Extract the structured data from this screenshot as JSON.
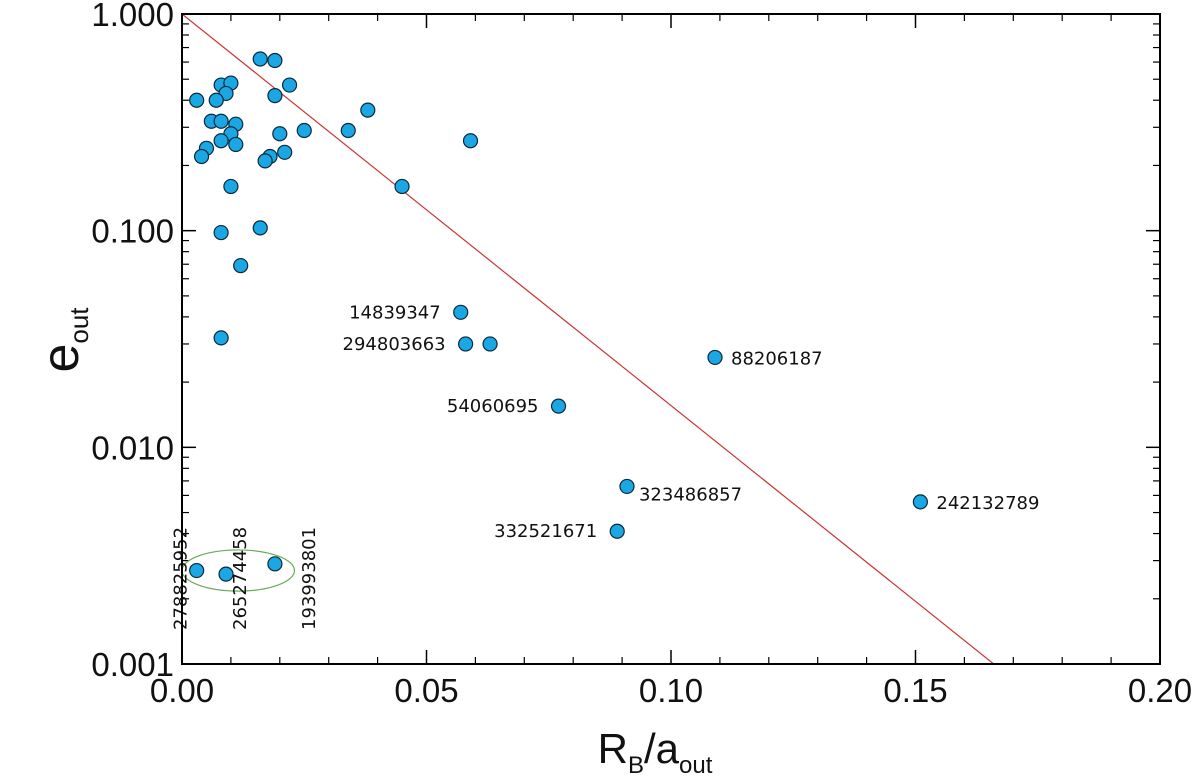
{
  "chart_data": {
    "type": "scatter",
    "xlabel": {
      "main": "R",
      "sub1": "B",
      "mid": "/a",
      "sub2": "out"
    },
    "ylabel": {
      "main": "e",
      "sub": "out"
    },
    "xlim": [
      0.0,
      0.2
    ],
    "ylim": [
      0.001,
      1.0
    ],
    "yscale": "log",
    "x_ticks": [
      0.0,
      0.05,
      0.1,
      0.15,
      0.2
    ],
    "x_tick_labels": [
      "0.00",
      "0.05",
      "0.10",
      "0.15",
      "0.20"
    ],
    "y_ticks": [
      0.001,
      0.01,
      0.1,
      1.0
    ],
    "y_tick_labels": [
      "0.001",
      "0.010",
      "0.100",
      "1.000"
    ],
    "colors": {
      "point": "#1BA6E4",
      "point_edge": "#0b2a3a",
      "line": "#cc3333",
      "ellipse": "#6aaa5a"
    },
    "line": {
      "x": [
        0.0,
        0.166
      ],
      "y": [
        1.0,
        0.001
      ]
    },
    "points": [
      {
        "x": 0.003,
        "y": 0.4
      },
      {
        "x": 0.008,
        "y": 0.47
      },
      {
        "x": 0.01,
        "y": 0.48
      },
      {
        "x": 0.009,
        "y": 0.43
      },
      {
        "x": 0.007,
        "y": 0.4
      },
      {
        "x": 0.016,
        "y": 0.62
      },
      {
        "x": 0.019,
        "y": 0.61
      },
      {
        "x": 0.022,
        "y": 0.47
      },
      {
        "x": 0.019,
        "y": 0.42
      },
      {
        "x": 0.006,
        "y": 0.32
      },
      {
        "x": 0.008,
        "y": 0.32
      },
      {
        "x": 0.011,
        "y": 0.31
      },
      {
        "x": 0.01,
        "y": 0.28
      },
      {
        "x": 0.008,
        "y": 0.26
      },
      {
        "x": 0.011,
        "y": 0.25
      },
      {
        "x": 0.005,
        "y": 0.24
      },
      {
        "x": 0.004,
        "y": 0.22
      },
      {
        "x": 0.02,
        "y": 0.28
      },
      {
        "x": 0.021,
        "y": 0.23
      },
      {
        "x": 0.018,
        "y": 0.22
      },
      {
        "x": 0.017,
        "y": 0.21
      },
      {
        "x": 0.025,
        "y": 0.29
      },
      {
        "x": 0.034,
        "y": 0.29
      },
      {
        "x": 0.038,
        "y": 0.36
      },
      {
        "x": 0.059,
        "y": 0.26
      },
      {
        "x": 0.01,
        "y": 0.16
      },
      {
        "x": 0.045,
        "y": 0.16
      },
      {
        "x": 0.016,
        "y": 0.103
      },
      {
        "x": 0.008,
        "y": 0.098
      },
      {
        "x": 0.012,
        "y": 0.069
      },
      {
        "x": 0.008,
        "y": 0.032
      },
      {
        "x": 0.063,
        "y": 0.03
      }
    ],
    "labeled_points": [
      {
        "x": 0.057,
        "y": 0.042,
        "label": "14839347",
        "side": "left"
      },
      {
        "x": 0.058,
        "y": 0.03,
        "label": "294803663",
        "side": "left"
      },
      {
        "x": 0.077,
        "y": 0.0155,
        "label": "54060695",
        "side": "left"
      },
      {
        "x": 0.109,
        "y": 0.026,
        "label": "88206187",
        "side": "right"
      },
      {
        "x": 0.091,
        "y": 0.0066,
        "label": "323486857",
        "side": "right-below"
      },
      {
        "x": 0.089,
        "y": 0.0041,
        "label": "332521671",
        "side": "left"
      },
      {
        "x": 0.151,
        "y": 0.0056,
        "label": "242132789",
        "side": "right"
      },
      {
        "x": 0.003,
        "y": 0.0027,
        "label": "278825952",
        "side": "vertical"
      },
      {
        "x": 0.009,
        "y": 0.0026,
        "label": "265274458",
        "side": "vertical"
      },
      {
        "x": 0.019,
        "y": 0.0029,
        "label": "193993801",
        "side": "vertical"
      }
    ],
    "ellipse": {
      "cx": 0.0115,
      "cy": 0.0027,
      "rx": 0.0115,
      "ry_decades": 0.095
    }
  }
}
